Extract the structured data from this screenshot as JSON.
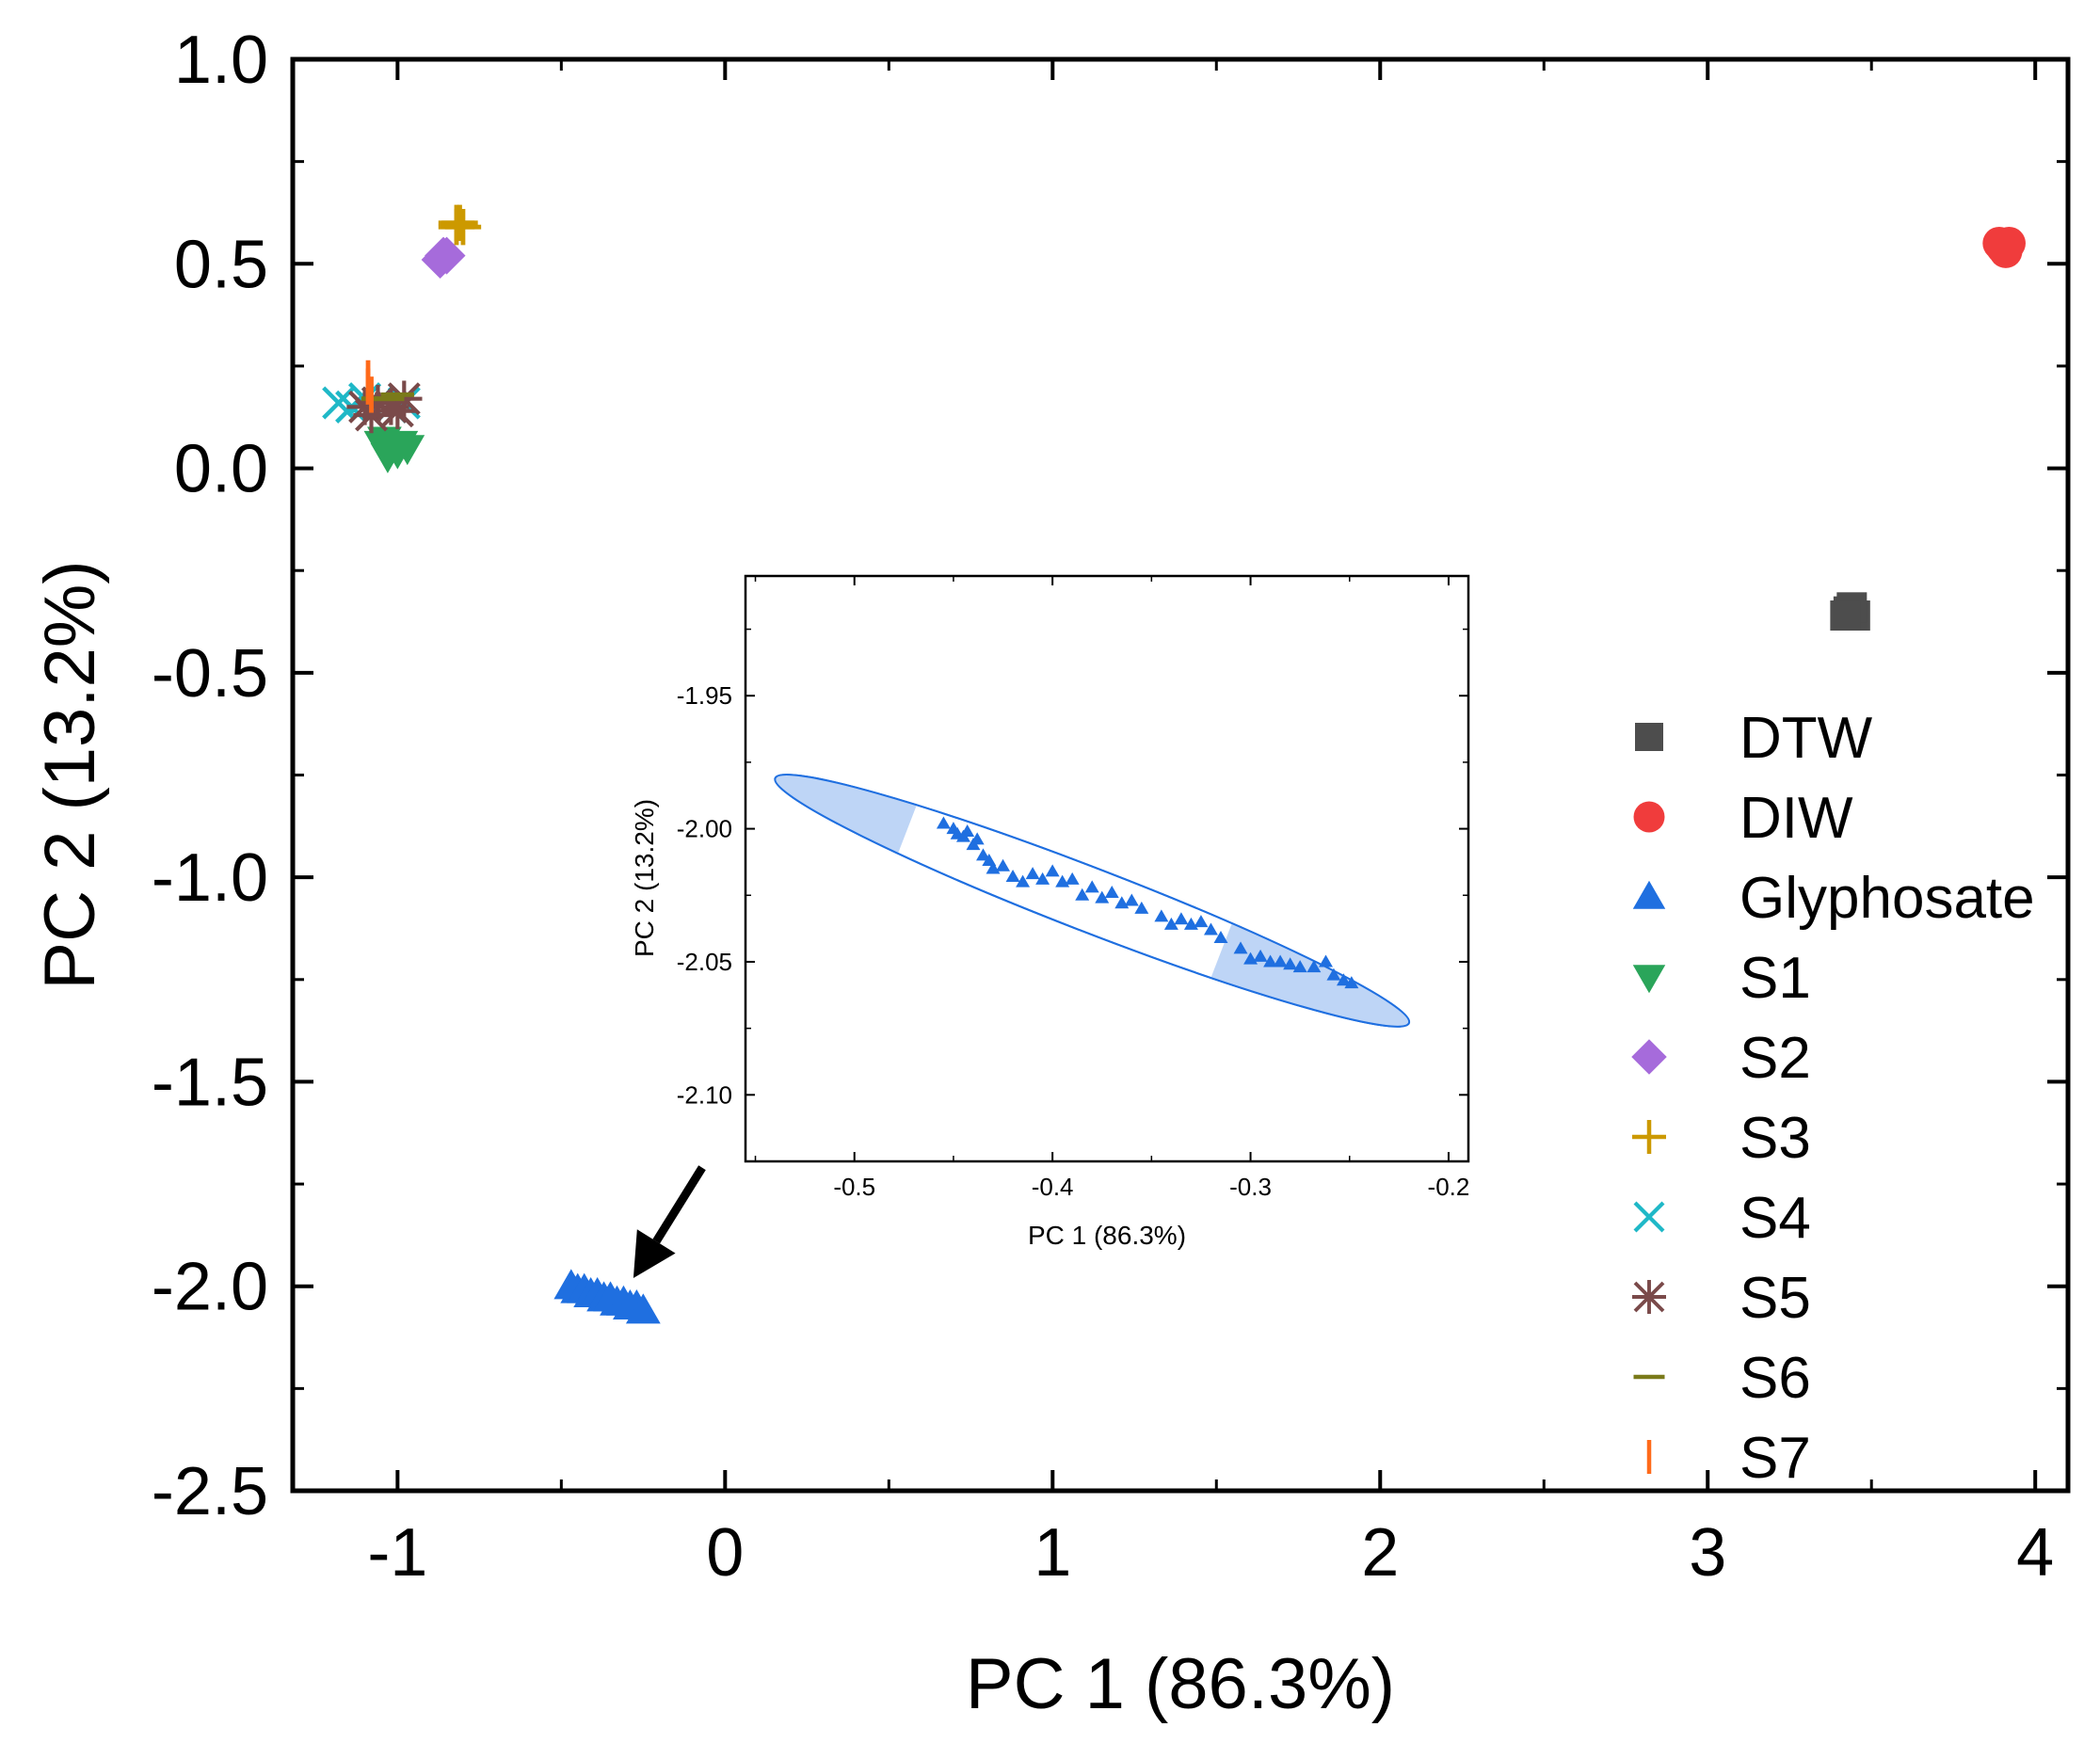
{
  "chart_data": {
    "type": "scatter",
    "main": {
      "xlabel": "PC 1 (86.3%)",
      "ylabel": "PC 2 (13.2%)",
      "xlim": [
        -1.32,
        4.1
      ],
      "ylim": [
        -2.5,
        1.0
      ],
      "xticks": [
        -1,
        0,
        1,
        2,
        3,
        4
      ],
      "xtick_labels": [
        "-1",
        "0",
        "1",
        "2",
        "3",
        "4"
      ],
      "yticks": [
        1.0,
        0.5,
        0.0,
        -0.5,
        -1.0,
        -1.5,
        -2.0,
        -2.5
      ],
      "ytick_labels": [
        "1.0",
        "0.5",
        "0.0",
        "-0.5",
        "-1.0",
        "-1.5",
        "-2.0",
        "-2.5"
      ],
      "grid": false,
      "legend_position": "right"
    },
    "series": [
      {
        "name": "DTW",
        "marker": "square",
        "color": "#4d4d4d",
        "points": [
          [
            3.43,
            -0.35
          ],
          [
            3.45,
            -0.36
          ],
          [
            3.44,
            -0.34
          ],
          [
            3.42,
            -0.36
          ]
        ]
      },
      {
        "name": "DIW",
        "marker": "circle",
        "color": "#f03c3c",
        "points": [
          [
            3.9,
            0.54
          ],
          [
            3.92,
            0.55
          ],
          [
            3.91,
            0.53
          ],
          [
            3.89,
            0.55
          ]
        ]
      },
      {
        "name": "Glyphosate",
        "marker": "triangle-up",
        "color": "#1f6fe0",
        "points": [
          [
            -0.47,
            -2.0
          ],
          [
            -0.45,
            -2.01
          ],
          [
            -0.43,
            -2.01
          ],
          [
            -0.41,
            -2.02
          ],
          [
            -0.39,
            -2.02
          ],
          [
            -0.37,
            -2.03
          ],
          [
            -0.35,
            -2.03
          ],
          [
            -0.33,
            -2.04
          ],
          [
            -0.31,
            -2.04
          ],
          [
            -0.29,
            -2.05
          ],
          [
            -0.27,
            -2.05
          ],
          [
            -0.25,
            -2.06
          ]
        ]
      },
      {
        "name": "S1",
        "marker": "triangle-down",
        "color": "#2aa55a",
        "points": [
          [
            -1.05,
            0.06
          ],
          [
            -1.02,
            0.05
          ],
          [
            -0.99,
            0.06
          ],
          [
            -1.03,
            0.03
          ],
          [
            -1.0,
            0.04
          ],
          [
            -0.97,
            0.05
          ],
          [
            -1.04,
            0.07
          ]
        ]
      },
      {
        "name": "S2",
        "marker": "diamond",
        "color": "#a66bdb",
        "points": [
          [
            -0.86,
            0.52
          ],
          [
            -0.85,
            0.52
          ],
          [
            -0.87,
            0.51
          ]
        ]
      },
      {
        "name": "S3",
        "marker": "plus",
        "color": "#cc9900",
        "points": [
          [
            -0.82,
            0.59
          ],
          [
            -0.81,
            0.6
          ],
          [
            -0.8,
            0.59
          ],
          [
            -0.82,
            0.6
          ]
        ]
      },
      {
        "name": "S4",
        "marker": "x",
        "color": "#1fb8c7",
        "points": [
          [
            -1.18,
            0.16
          ],
          [
            -1.14,
            0.15
          ],
          [
            -1.1,
            0.17
          ],
          [
            -1.06,
            0.16
          ],
          [
            -1.02,
            0.15
          ],
          [
            -0.98,
            0.16
          ]
        ]
      },
      {
        "name": "S5",
        "marker": "asterisk",
        "color": "#7a4a4a",
        "points": [
          [
            -1.1,
            0.15
          ],
          [
            -1.06,
            0.16
          ],
          [
            -1.02,
            0.15
          ],
          [
            -0.98,
            0.17
          ],
          [
            -1.08,
            0.13
          ],
          [
            -1.0,
            0.14
          ]
        ]
      },
      {
        "name": "S6",
        "marker": "dash",
        "color": "#7a7a1a",
        "points": [
          [
            -1.06,
            0.17
          ],
          [
            -1.03,
            0.17
          ],
          [
            -1.0,
            0.18
          ]
        ]
      },
      {
        "name": "S7",
        "marker": "vbar",
        "color": "#ff6a1a",
        "points": [
          [
            -1.09,
            0.2
          ],
          [
            -1.08,
            0.18
          ],
          [
            -1.09,
            0.22
          ]
        ]
      }
    ],
    "inset": {
      "xlabel": "PC 1 (86.3%)",
      "ylabel": "PC 2 (13.2%)",
      "xlim": [
        -0.555,
        -0.19
      ],
      "ylim": [
        -2.125,
        -1.905
      ],
      "xticks": [
        -0.5,
        -0.4,
        -0.3,
        -0.2
      ],
      "xtick_labels": [
        "-0.5",
        "-0.4",
        "-0.3",
        "-0.2"
      ],
      "yticks": [
        -1.95,
        -2.0,
        -2.05,
        -2.1
      ],
      "ytick_labels": [
        "-1.95",
        "-2.00",
        "-2.05",
        "-2.10"
      ],
      "ellipse": {
        "center": [
          -0.38,
          -2.027
        ],
        "endpoint_a": [
          -0.54,
          -1.981
        ],
        "endpoint_b": [
          -0.22,
          -2.073
        ],
        "minor_half_width": 0.012
      },
      "points": [
        [
          -0.455,
          -1.998
        ],
        [
          -0.45,
          -2.0
        ],
        [
          -0.448,
          -2.002
        ],
        [
          -0.445,
          -2.003
        ],
        [
          -0.443,
          -2.001
        ],
        [
          -0.44,
          -2.006
        ],
        [
          -0.438,
          -2.004
        ],
        [
          -0.435,
          -2.01
        ],
        [
          -0.432,
          -2.012
        ],
        [
          -0.43,
          -2.015
        ],
        [
          -0.425,
          -2.014
        ],
        [
          -0.42,
          -2.018
        ],
        [
          -0.415,
          -2.02
        ],
        [
          -0.41,
          -2.017
        ],
        [
          -0.405,
          -2.019
        ],
        [
          -0.4,
          -2.016
        ],
        [
          -0.395,
          -2.02
        ],
        [
          -0.39,
          -2.019
        ],
        [
          -0.385,
          -2.025
        ],
        [
          -0.38,
          -2.022
        ],
        [
          -0.375,
          -2.026
        ],
        [
          -0.37,
          -2.024
        ],
        [
          -0.365,
          -2.028
        ],
        [
          -0.36,
          -2.027
        ],
        [
          -0.355,
          -2.03
        ],
        [
          -0.345,
          -2.033
        ],
        [
          -0.34,
          -2.036
        ],
        [
          -0.335,
          -2.034
        ],
        [
          -0.33,
          -2.036
        ],
        [
          -0.325,
          -2.035
        ],
        [
          -0.32,
          -2.038
        ],
        [
          -0.315,
          -2.041
        ],
        [
          -0.305,
          -2.045
        ],
        [
          -0.3,
          -2.049
        ],
        [
          -0.295,
          -2.048
        ],
        [
          -0.29,
          -2.05
        ],
        [
          -0.285,
          -2.05
        ],
        [
          -0.28,
          -2.051
        ],
        [
          -0.275,
          -2.052
        ],
        [
          -0.268,
          -2.052
        ],
        [
          -0.262,
          -2.05
        ],
        [
          -0.258,
          -2.055
        ],
        [
          -0.253,
          -2.057
        ],
        [
          -0.249,
          -2.058
        ]
      ]
    },
    "arrow": {
      "from": [
        -0.07,
        -1.71
      ],
      "to": [
        -0.28,
        -1.98
      ]
    }
  },
  "legend_items": [
    "DTW",
    "DIW",
    "Glyphosate",
    "S1",
    "S2",
    "S3",
    "S4",
    "S5",
    "S6",
    "S7"
  ]
}
